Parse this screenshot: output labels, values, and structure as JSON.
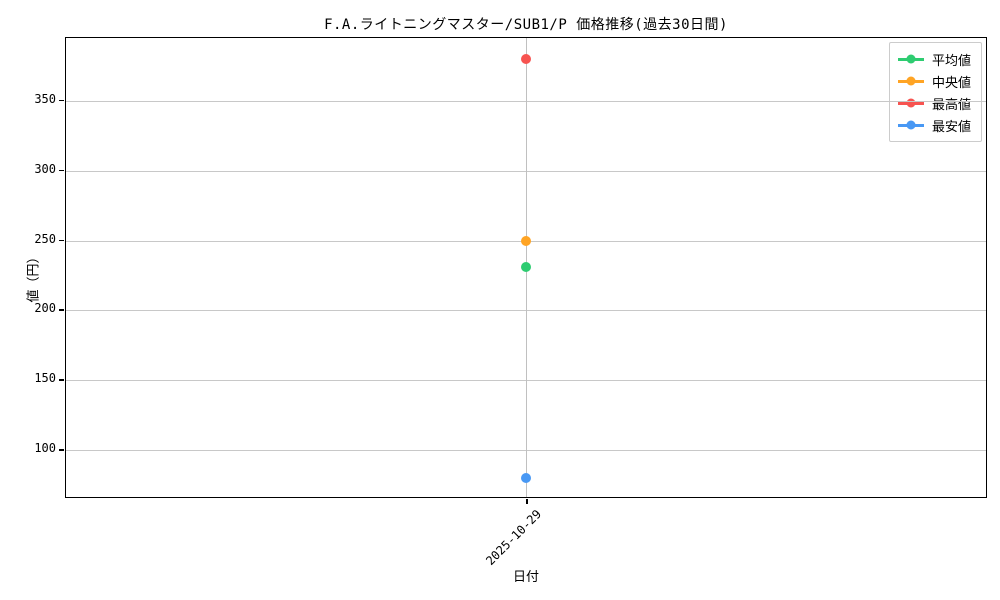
{
  "chart_data": {
    "type": "scatter",
    "title": "F.A.ライトニングマスター/SUB1/P 価格推移(過去30日間)",
    "xlabel": "日付",
    "ylabel": "値（円）",
    "x": [
      "2025-10-29"
    ],
    "series": [
      {
        "name": "平均値",
        "color": "#2ecc71",
        "values": [
          231
        ]
      },
      {
        "name": "中央値",
        "color": "#ffa424",
        "values": [
          250
        ]
      },
      {
        "name": "最高値",
        "color": "#f75350",
        "values": [
          380
        ]
      },
      {
        "name": "最安値",
        "color": "#4898f4",
        "values": [
          80
        ]
      }
    ],
    "ylim": [
      65,
      395
    ],
    "yticks": [
      100,
      150,
      200,
      250,
      300,
      350
    ],
    "grid": true,
    "legend_position": "upper right"
  },
  "colors": {
    "background": "#ffffff",
    "grid": "#c8c8c8",
    "axis": "#000000",
    "legend_border": "#cccccc"
  }
}
